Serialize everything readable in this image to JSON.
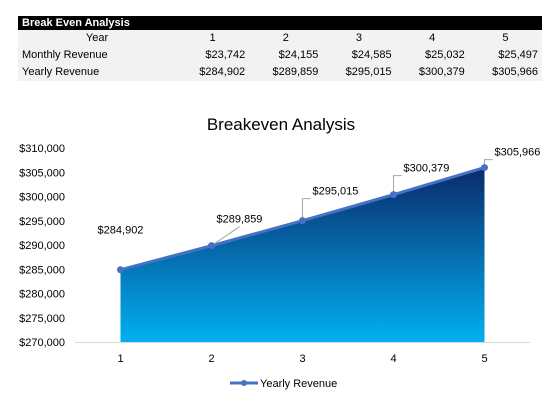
{
  "table": {
    "title": "Break Even Analysis",
    "header_label": "Year",
    "years": [
      "1",
      "2",
      "3",
      "4",
      "5"
    ],
    "rows": [
      {
        "label": "Monthly Revenue",
        "values": [
          "$23,742",
          "$24,155",
          "$24,585",
          "$25,032",
          "$25,497"
        ]
      },
      {
        "label": "Yearly Revenue",
        "values": [
          "$284,902",
          "$289,859",
          "$295,015",
          "$300,379",
          "$305,966"
        ]
      }
    ]
  },
  "chart_data": {
    "type": "area",
    "title": "Breakeven Analysis",
    "categories": [
      "1",
      "2",
      "3",
      "4",
      "5"
    ],
    "series": [
      {
        "name": "Yearly Revenue",
        "values": [
          284902,
          289859,
          295015,
          300379,
          305966
        ]
      }
    ],
    "data_labels": [
      "$284,902",
      "$289,859",
      "$295,015",
      "$300,379",
      "$305,966"
    ],
    "yticks": [
      "$270,000",
      "$275,000",
      "$280,000",
      "$285,000",
      "$290,000",
      "$295,000",
      "$300,000",
      "$305,000",
      "$310,000"
    ],
    "ylim": [
      270000,
      310000
    ],
    "xlabel": "",
    "ylabel": "",
    "grid": false,
    "legend": "bottom",
    "colors": {
      "line": "#4472c4",
      "fill_top": "#0b2a6b",
      "fill_bottom": "#00b0f0",
      "axis": "#d9d9d9",
      "label_line": "#a6a6a6"
    }
  }
}
